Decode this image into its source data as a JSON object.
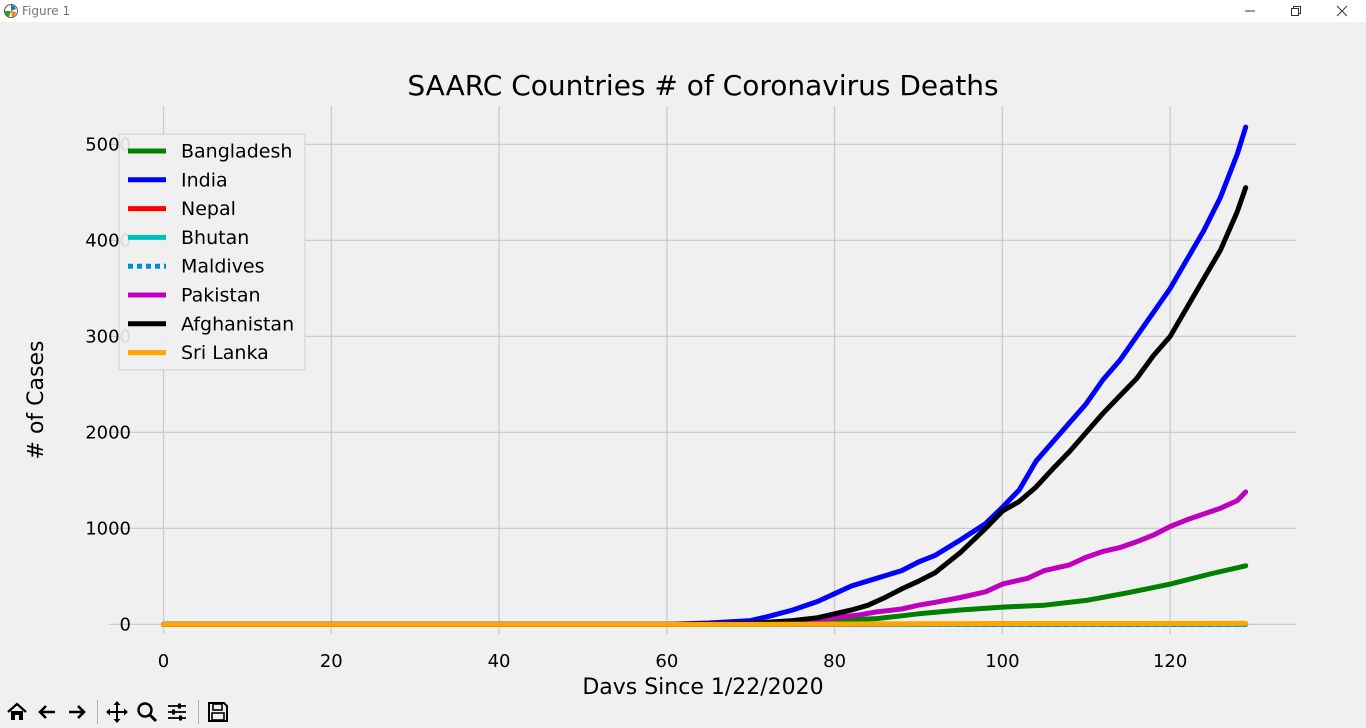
{
  "window": {
    "title": "Figure 1"
  },
  "toolbar": {
    "buttons": [
      "home-icon",
      "back-icon",
      "forward-icon",
      "pan-icon",
      "zoom-icon",
      "configure-subplots-icon",
      "save-icon"
    ]
  },
  "colors": {
    "figure_bg": "#f0f0f0",
    "grid": "#cbcbcb",
    "Bangladesh": "#008000",
    "India": "#0000ff",
    "Nepal": "#ff0000",
    "Bhutan": "#00bfbf",
    "Maldives": "#008fd5",
    "Pakistan": "#bf00bf",
    "Afghanistan": "#000000",
    "Sri Lanka": "#ffa500"
  },
  "chart_data": {
    "type": "line",
    "title": "SAARC Countries # of Coronavirus Deaths",
    "xlabel": "Davs Since 1/22/2020",
    "ylabel": "# of Cases",
    "xlim": [
      -6.5,
      135
    ],
    "ylim": [
      -100,
      5400
    ],
    "xticks": [
      0,
      20,
      40,
      60,
      80,
      100,
      120
    ],
    "yticks": [
      0,
      1000,
      2000,
      3000,
      4000,
      5000
    ],
    "grid": true,
    "legend_position": "upper-left",
    "series": [
      {
        "name": "Bangladesh",
        "color": "#008000",
        "style": "solid",
        "x": [
          0,
          60,
          70,
          75,
          80,
          85,
          88,
          90,
          95,
          100,
          105,
          110,
          115,
          120,
          125,
          129
        ],
        "y": [
          0,
          0,
          8,
          20,
          40,
          60,
          90,
          110,
          150,
          180,
          200,
          250,
          330,
          420,
          530,
          610
        ]
      },
      {
        "name": "India",
        "color": "#0000ff",
        "style": "solid",
        "x": [
          0,
          55,
          60,
          65,
          70,
          72,
          75,
          78,
          80,
          82,
          85,
          88,
          90,
          92,
          95,
          98,
          100,
          102,
          104,
          106,
          108,
          110,
          112,
          114,
          116,
          118,
          120,
          122,
          124,
          126,
          128,
          129
        ],
        "y": [
          0,
          0,
          2,
          15,
          40,
          80,
          150,
          240,
          320,
          400,
          480,
          560,
          650,
          720,
          880,
          1050,
          1220,
          1400,
          1700,
          1900,
          2100,
          2300,
          2550,
          2750,
          3000,
          3250,
          3500,
          3800,
          4100,
          4450,
          4900,
          5180
        ]
      },
      {
        "name": "Nepal",
        "color": "#ff0000",
        "style": "solid",
        "x": [
          0,
          100,
          129
        ],
        "y": [
          0,
          0,
          0
        ]
      },
      {
        "name": "Bhutan",
        "color": "#00bfbf",
        "style": "solid",
        "x": [
          0,
          129
        ],
        "y": [
          0,
          0
        ]
      },
      {
        "name": "Maldives",
        "color": "#008fd5",
        "style": "dotted",
        "x": [
          0,
          129
        ],
        "y": [
          0,
          0
        ]
      },
      {
        "name": "Pakistan",
        "color": "#bf00bf",
        "style": "solid",
        "x": [
          0,
          60,
          70,
          75,
          80,
          83,
          85,
          88,
          90,
          92,
          95,
          98,
          100,
          103,
          105,
          108,
          110,
          112,
          114,
          116,
          118,
          120,
          122,
          124,
          126,
          128,
          129
        ],
        "y": [
          0,
          0,
          10,
          30,
          70,
          100,
          130,
          160,
          200,
          230,
          280,
          340,
          420,
          480,
          560,
          620,
          700,
          760,
          800,
          860,
          930,
          1020,
          1090,
          1150,
          1210,
          1290,
          1380
        ]
      },
      {
        "name": "Afghanistan",
        "color": "#000000",
        "style": "solid",
        "x": [
          0,
          60,
          70,
          75,
          78,
          80,
          82,
          84,
          86,
          88,
          90,
          92,
          95,
          98,
          100,
          102,
          104,
          106,
          108,
          110,
          112,
          114,
          116,
          118,
          120,
          122,
          124,
          126,
          128,
          129
        ],
        "y": [
          0,
          0,
          10,
          40,
          70,
          110,
          150,
          200,
          280,
          370,
          450,
          540,
          750,
          1000,
          1180,
          1280,
          1430,
          1620,
          1800,
          2000,
          2200,
          2380,
          2560,
          2800,
          3000,
          3300,
          3600,
          3900,
          4300,
          4550
        ]
      },
      {
        "name": "Sri Lanka",
        "color": "#ffa500",
        "style": "solid",
        "x": [
          0,
          70,
          85,
          100,
          129
        ],
        "y": [
          0,
          0,
          5,
          9,
          10
        ]
      }
    ]
  }
}
